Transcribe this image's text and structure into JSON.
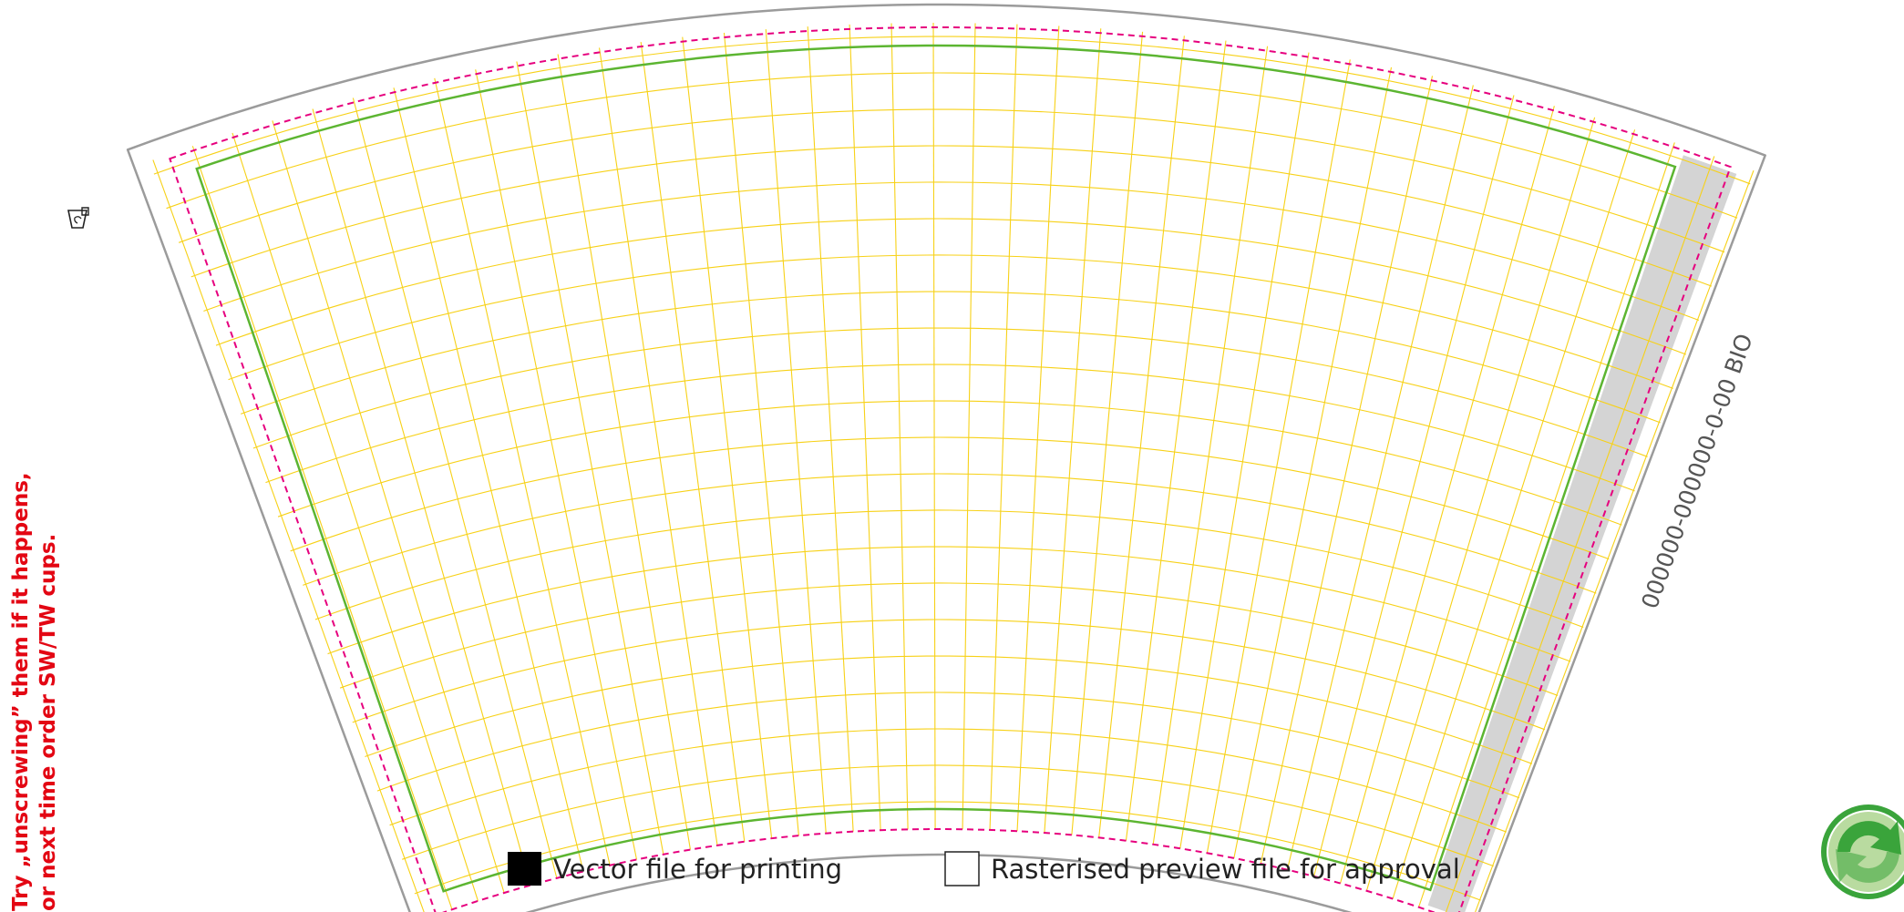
{
  "template": {
    "code_label": "000000-000000-0-00 BIO",
    "side_note": {
      "line1": "Try „unscrewing” them if it happens,",
      "line2": "or next time order SW/TW cups."
    },
    "icon": "cup-recycling-icon",
    "badge": "green-dot-recycling-icon"
  },
  "legend": {
    "items": [
      {
        "label": "Vector file for printing",
        "swatch": "filled"
      },
      {
        "label": "Rasterised preview file for approval",
        "swatch": "empty"
      }
    ]
  },
  "colors": {
    "outline": "#9b9b9b",
    "bleed": "#e6007e",
    "safe_area": "#5cb531",
    "grid": "#f7d117",
    "seam": "#d4d4d4",
    "note": "#e30613",
    "badge_dark": "#3aa43b",
    "badge_light": "#b9dba0"
  }
}
